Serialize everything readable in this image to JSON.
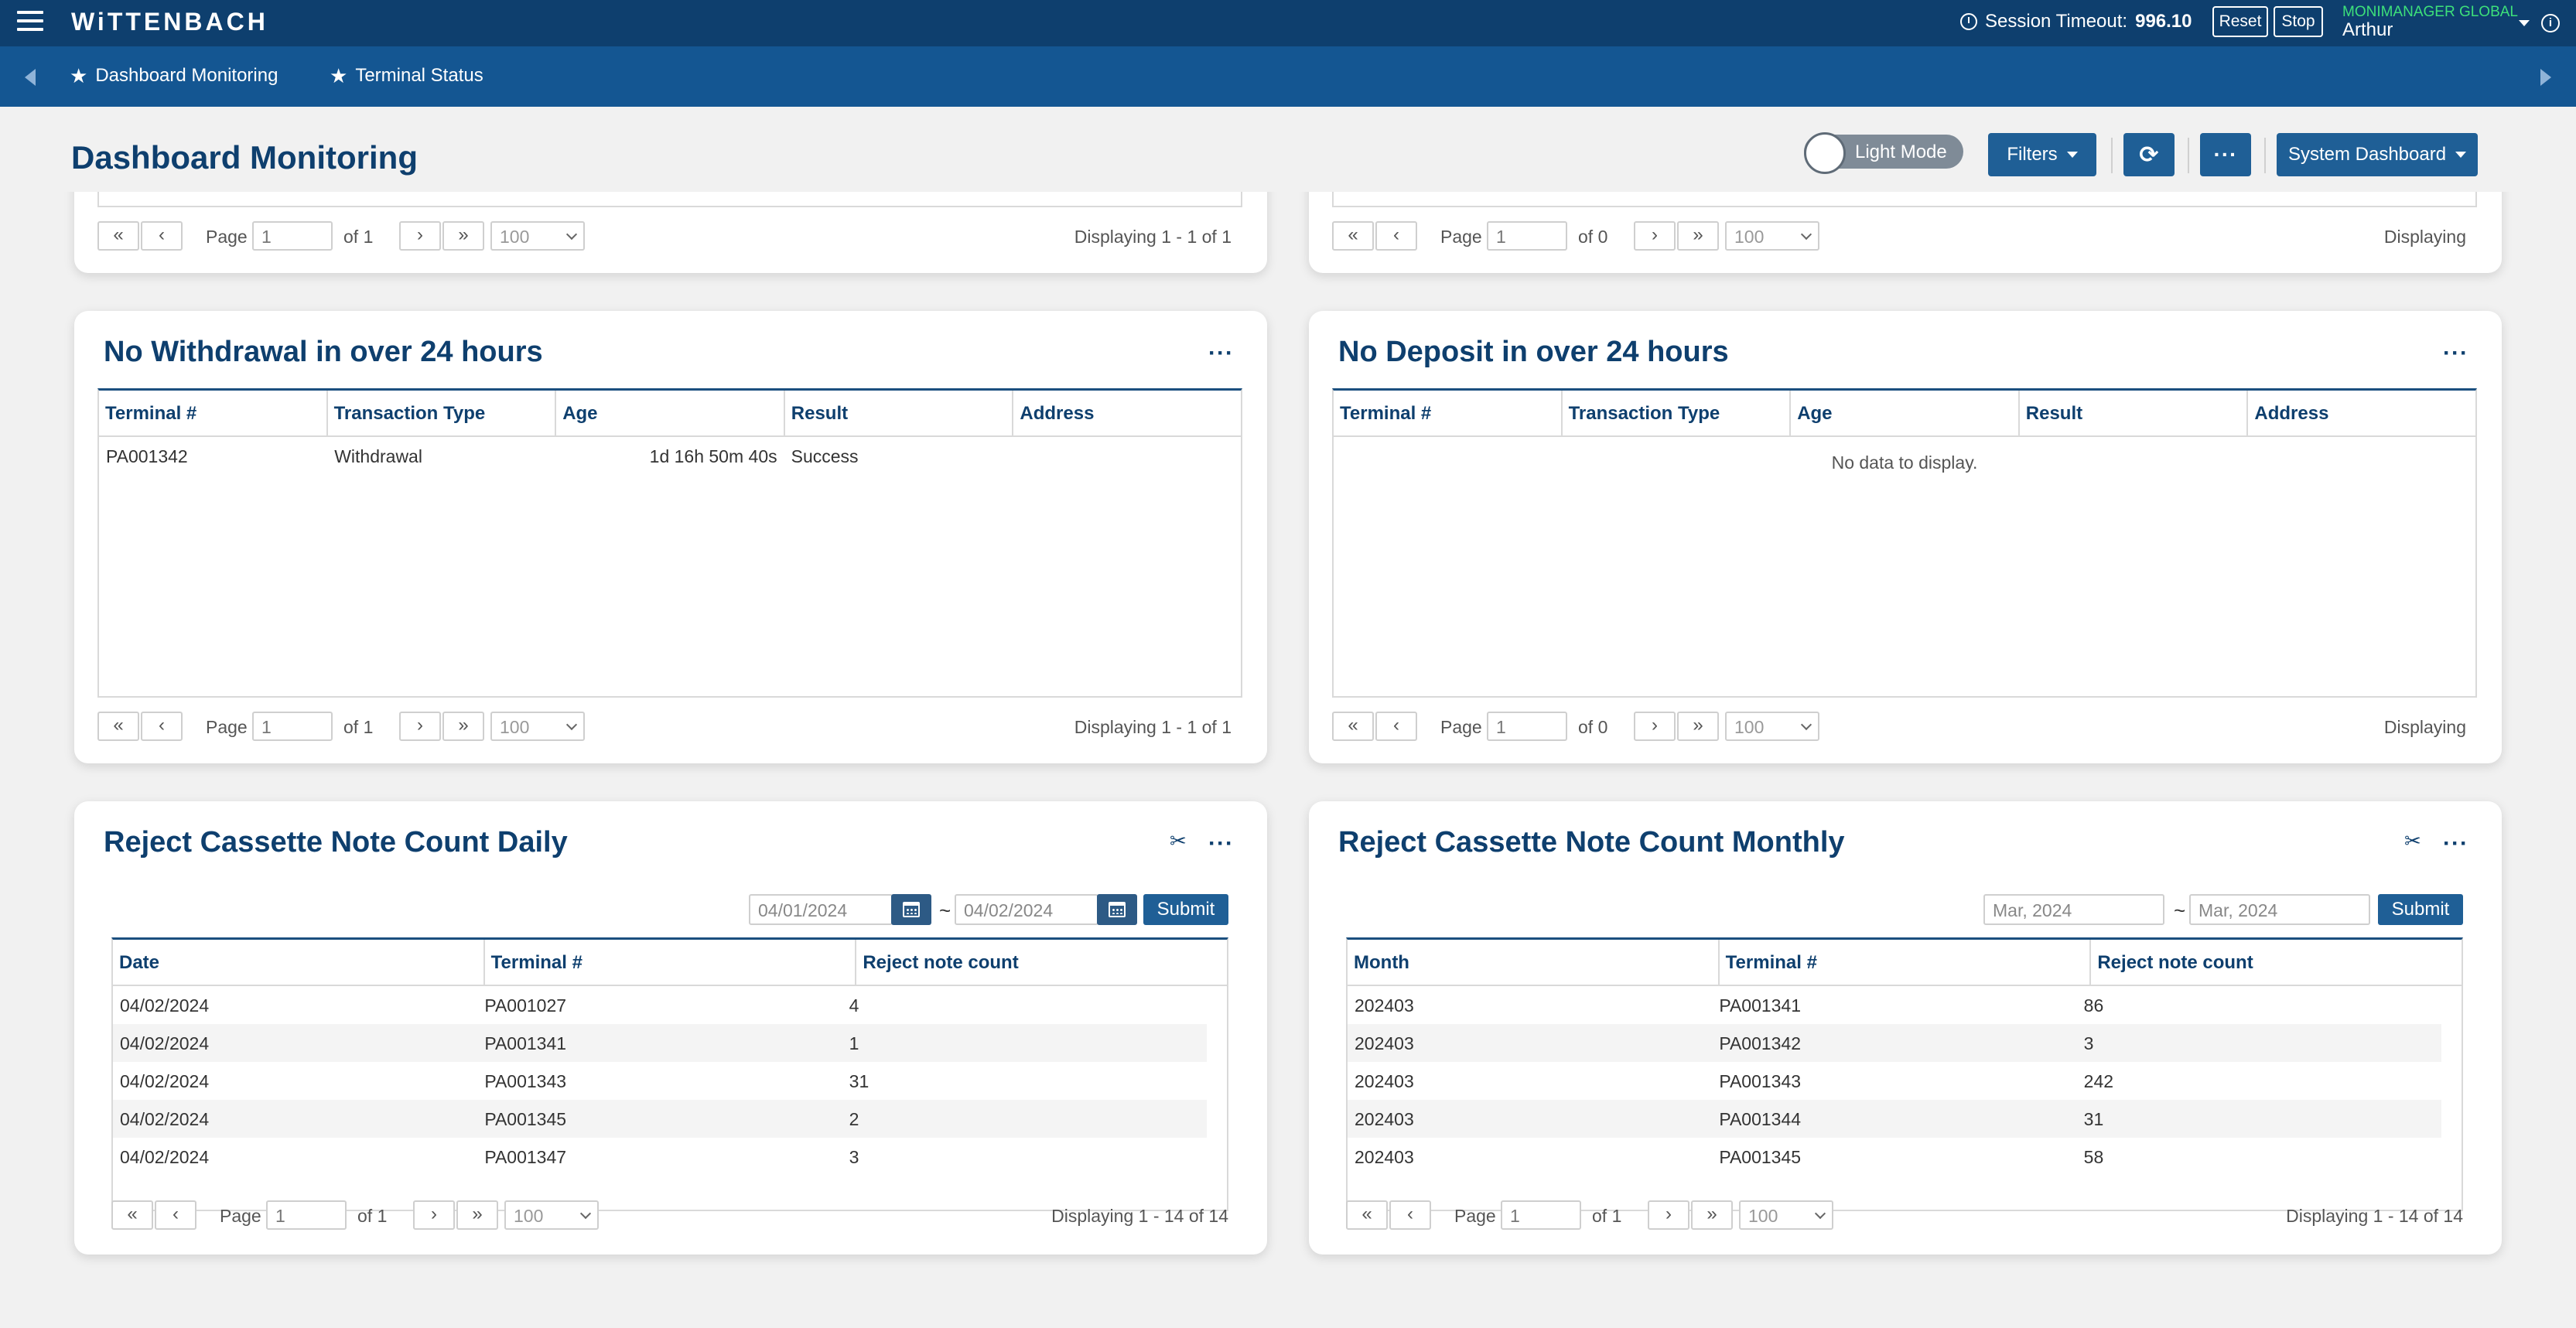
{
  "topbar": {
    "logo": "WiTTENBACH",
    "session_label": "Session Timeout:",
    "session_value": "996.10",
    "reset_label": "Reset",
    "stop_label": "Stop",
    "user_role": "MONIMANAGER GLOBAL",
    "user_name": "Arthur",
    "info_glyph": "i"
  },
  "tabs": [
    {
      "label": "Dashboard Monitoring",
      "icon": "star-icon"
    },
    {
      "label": "Terminal Status",
      "icon": "star-icon"
    }
  ],
  "header": {
    "title": "Dashboard Monitoring",
    "mode_toggle": "Light Mode",
    "filters_label": "Filters",
    "refresh_glyph": "⟳",
    "more_glyph": "···",
    "system_dashboard_label": "System Dashboard"
  },
  "pager_common": {
    "first": "«",
    "prev": "‹",
    "next": "›",
    "last": "»",
    "page_label": "Page",
    "page_value": "1",
    "page_size": "100"
  },
  "top_left_stub": {
    "of_text": "of 1",
    "displaying": "Displaying 1 - 1 of 1"
  },
  "top_right_stub": {
    "of_text": "of 0",
    "displaying": "Displaying"
  },
  "panel_withdrawal": {
    "title": "No Withdrawal in over 24 hours",
    "menu": "···",
    "columns": [
      "Terminal #",
      "Transaction Type",
      "Age",
      "Result",
      "Address"
    ],
    "rows": [
      {
        "terminal": "PA001342",
        "type": "Withdrawal",
        "age": "1d 16h 50m 40s",
        "result": "Success",
        "address": ""
      }
    ],
    "of_text": "of 1",
    "displaying": "Displaying 1 - 1 of 1"
  },
  "panel_deposit": {
    "title": "No Deposit in over 24 hours",
    "menu": "···",
    "columns": [
      "Terminal #",
      "Transaction Type",
      "Age",
      "Result",
      "Address"
    ],
    "empty": "No data to display.",
    "of_text": "of 0",
    "displaying": "Displaying"
  },
  "panel_daily": {
    "title": "Reject Cassette Note Count Daily",
    "pin": "✂",
    "menu": "···",
    "date_from": "04/01/2024",
    "date_to": "04/02/2024",
    "tilde": "~",
    "submit": "Submit",
    "columns": [
      "Date",
      "Terminal #",
      "Reject note count"
    ],
    "rows": [
      [
        "04/02/2024",
        "PA001027",
        "4"
      ],
      [
        "04/02/2024",
        "PA001341",
        "1"
      ],
      [
        "04/02/2024",
        "PA001343",
        "31"
      ],
      [
        "04/02/2024",
        "PA001345",
        "2"
      ],
      [
        "04/02/2024",
        "PA001347",
        "3"
      ]
    ],
    "of_text": "of 1",
    "displaying": "Displaying 1 - 14 of 14"
  },
  "panel_monthly": {
    "title": "Reject Cassette Note Count Monthly",
    "pin": "✂",
    "menu": "···",
    "date_from": "Mar, 2024",
    "date_to": "Mar, 2024",
    "tilde": "~",
    "submit": "Submit",
    "columns": [
      "Month",
      "Terminal #",
      "Reject note count"
    ],
    "rows": [
      [
        "202403",
        "PA001341",
        "86"
      ],
      [
        "202403",
        "PA001342",
        "3"
      ],
      [
        "202403",
        "PA001343",
        "242"
      ],
      [
        "202403",
        "PA001344",
        "31"
      ],
      [
        "202403",
        "PA001345",
        "58"
      ]
    ],
    "of_text": "of 1",
    "displaying": "Displaying 1 - 14 of 14"
  },
  "colors": {
    "topbar": "#0e3f6e",
    "tabbar": "#145692",
    "accent": "#1f5f96",
    "role_green": "#3de07a"
  }
}
